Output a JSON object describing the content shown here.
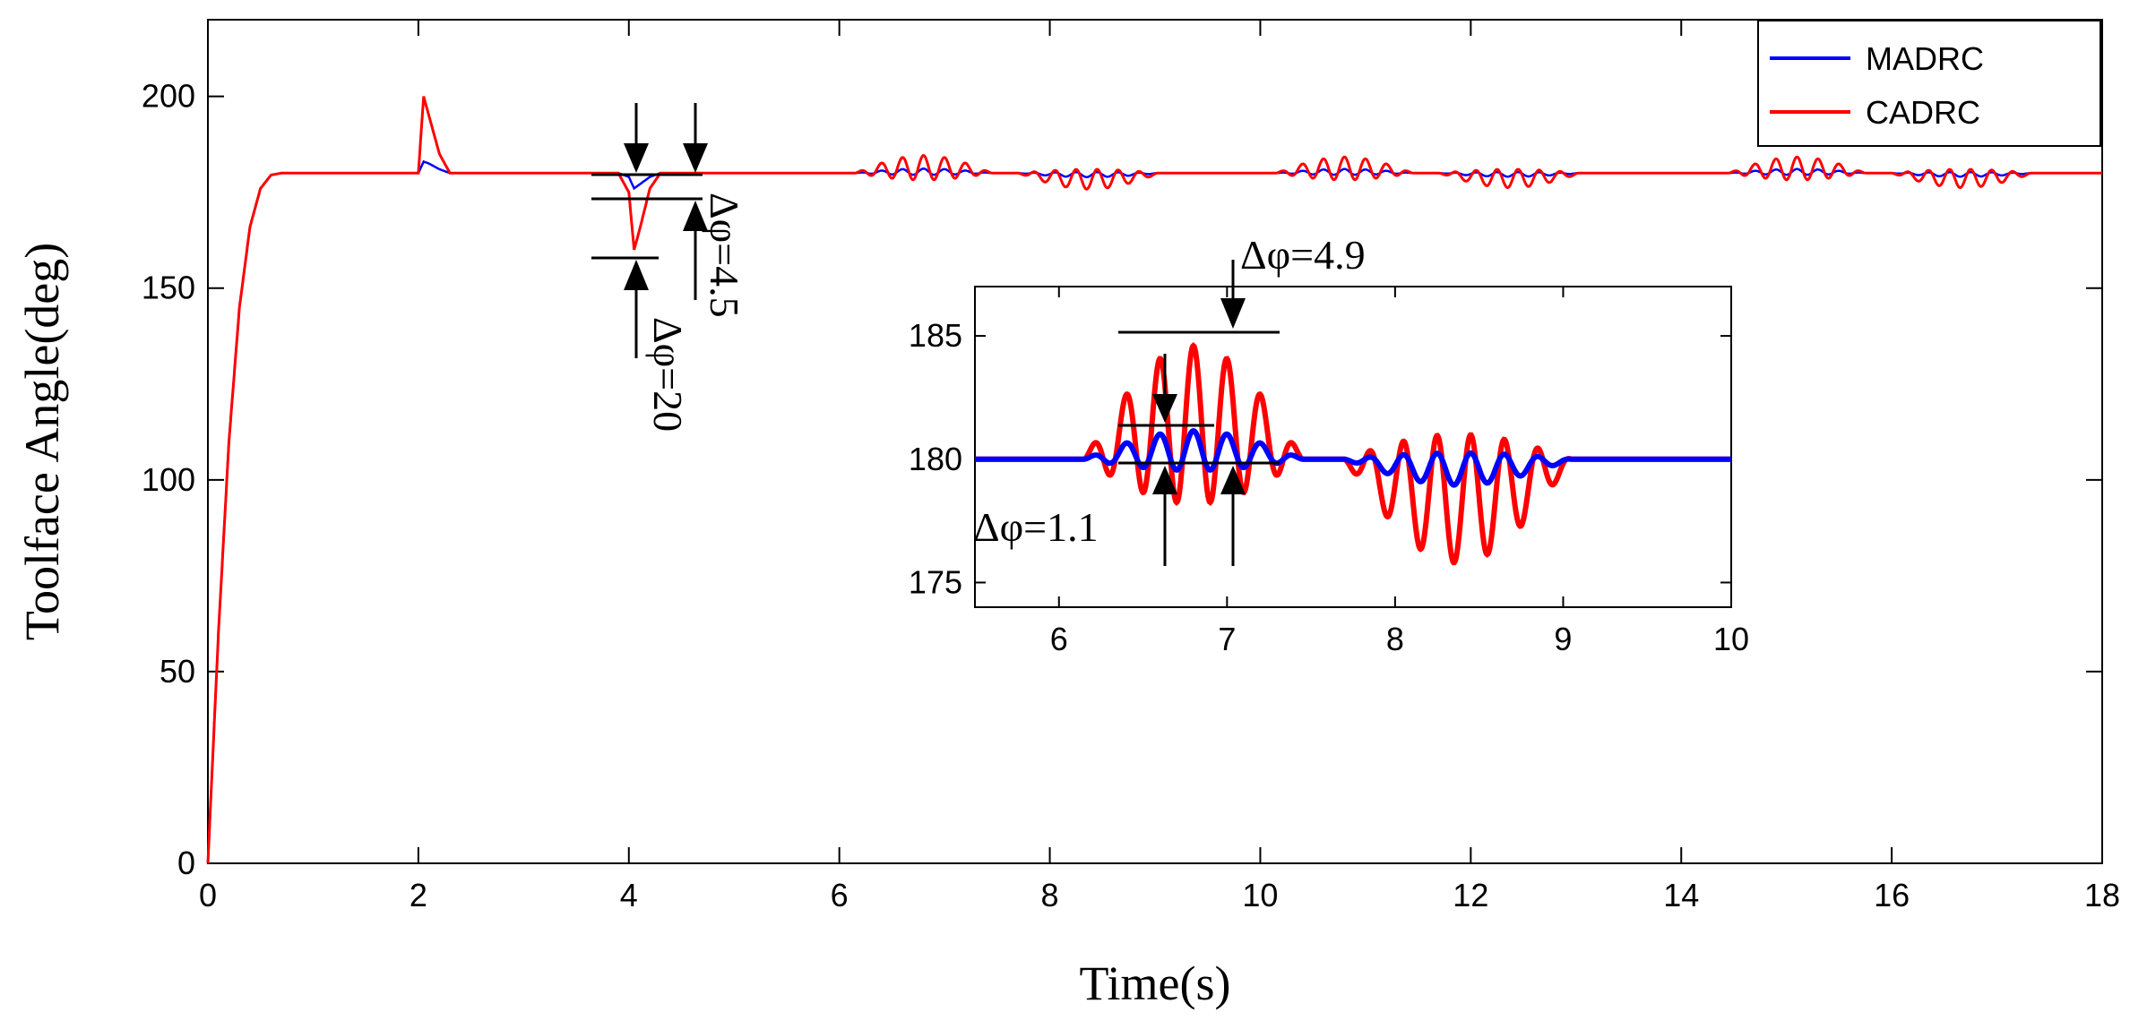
{
  "chart_data": {
    "type": "line",
    "xlabel": "Time(s)",
    "ylabel": "Toolface Angle(deg)",
    "xlim": [
      0,
      18
    ],
    "ylim": [
      0,
      220
    ],
    "xticks": [
      "0",
      "2",
      "4",
      "6",
      "8",
      "10",
      "12",
      "14",
      "16",
      "18"
    ],
    "yticks": [
      "0",
      "50",
      "100",
      "150",
      "200"
    ],
    "grid": false,
    "legend_position": "top-right",
    "series": [
      {
        "name": "MADRC",
        "color": "#0000ff",
        "x": [
          0,
          0.1,
          0.2,
          0.3,
          0.4,
          0.5,
          0.6,
          0.7,
          2.0,
          2.05,
          2.1,
          2.2,
          2.3,
          3.9,
          4.0,
          4.05,
          4.1,
          4.2,
          4.3,
          18
        ],
        "values": [
          0,
          60,
          110,
          145,
          166,
          176,
          179.5,
          180,
          180,
          183,
          182.5,
          181,
          180,
          180,
          179,
          176,
          177,
          179,
          180,
          180
        ]
      },
      {
        "name": "CADRC",
        "color": "#ff0000",
        "x": [
          0,
          0.1,
          0.2,
          0.3,
          0.4,
          0.5,
          0.6,
          0.7,
          2.0,
          2.05,
          2.1,
          2.2,
          2.3,
          3.9,
          4.0,
          4.05,
          4.1,
          4.2,
          4.3,
          18
        ],
        "values": [
          0,
          60,
          110,
          145,
          166,
          176,
          179.5,
          180,
          180,
          200,
          195,
          185,
          180,
          180,
          175,
          160,
          165,
          176,
          180,
          180
        ]
      }
    ],
    "annotations": [
      {
        "label": "Δφ=4.5",
        "x": 4.6,
        "y": 180
      },
      {
        "label": "Δφ=20",
        "x": 4.1,
        "y": 160
      }
    ],
    "inset": {
      "xlim": [
        5.5,
        10
      ],
      "ylim": [
        174,
        187
      ],
      "xticks": [
        "6",
        "7",
        "8",
        "9",
        "10"
      ],
      "yticks": [
        "175",
        "180",
        "185"
      ],
      "annotations": [
        {
          "label": "Δφ=4.9",
          "x": 7.2,
          "y": 185.1
        },
        {
          "label": "Δφ=1.1",
          "x": 6.3,
          "y": 180
        }
      ]
    }
  }
}
